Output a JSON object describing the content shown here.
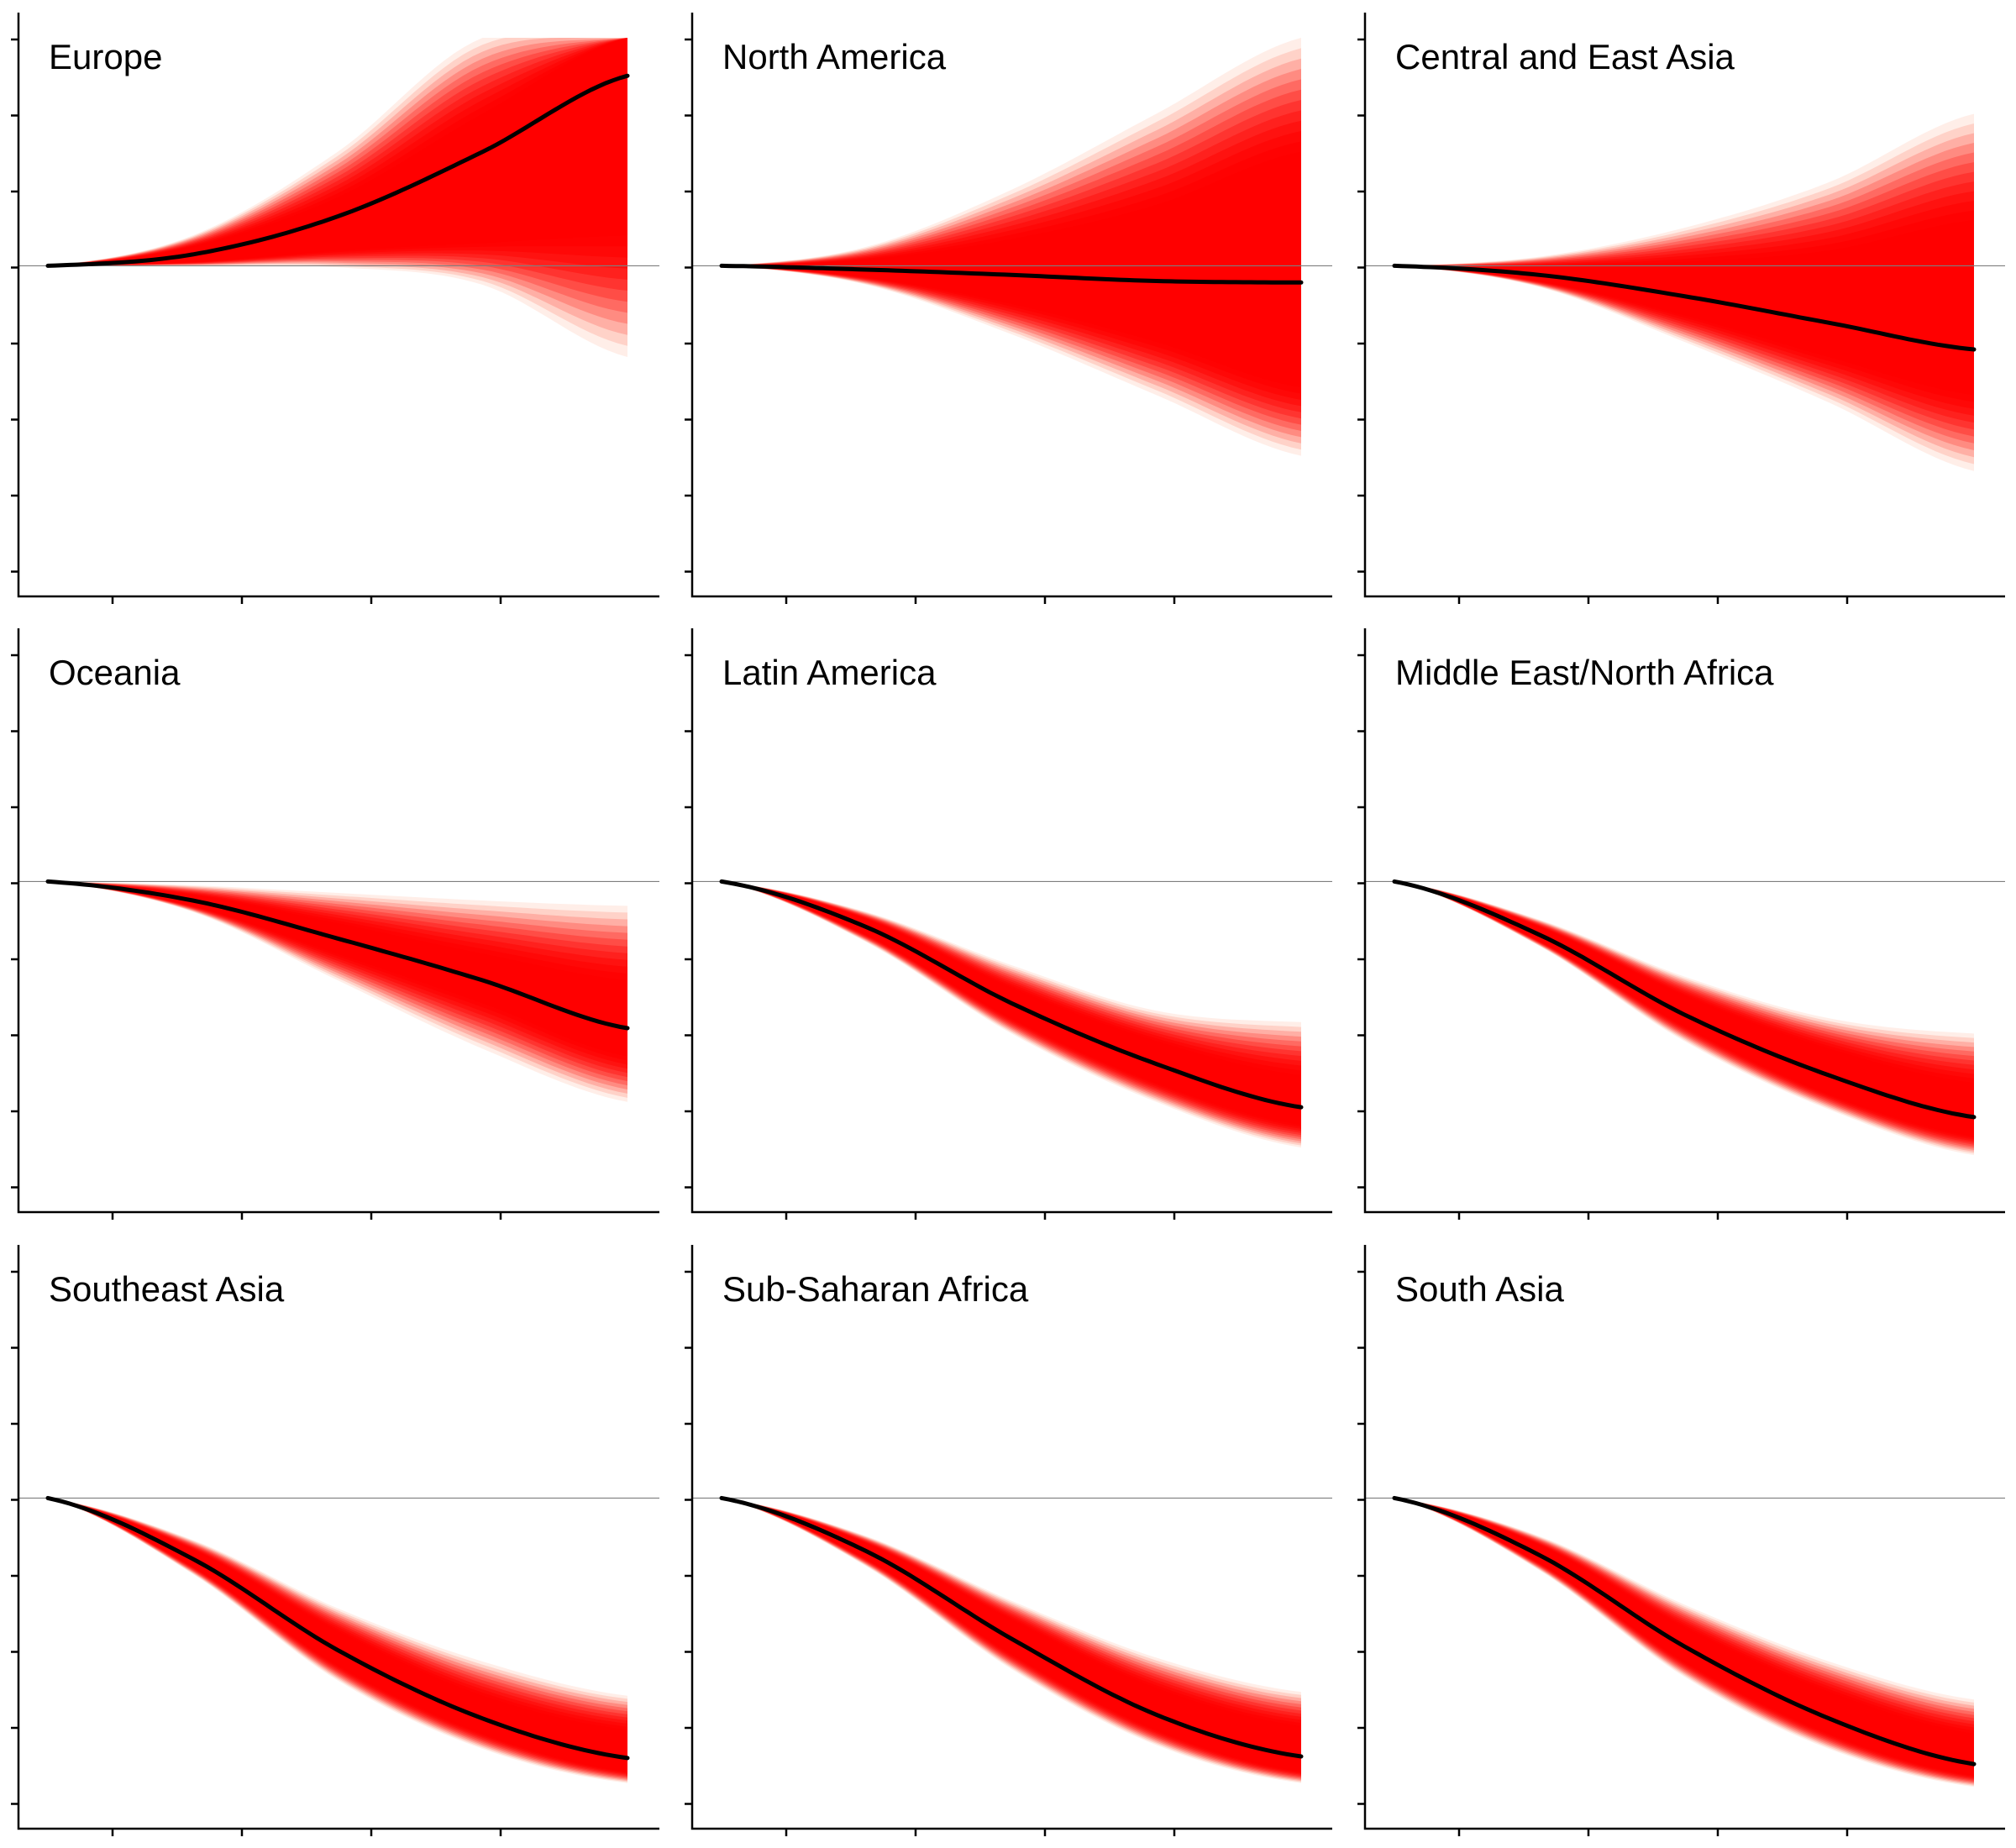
{
  "chart_data": [
    {
      "type": "area",
      "title": "Europe",
      "ylim": [
        -4.35,
        3.0
      ],
      "x": [
        0,
        0.25,
        0.5,
        0.75,
        1.0
      ],
      "median": [
        0,
        0.15,
        0.65,
        1.5,
        2.5
      ],
      "upper": [
        0,
        0.4,
        1.5,
        3.0,
        3.0
      ],
      "lower": [
        0,
        0.0,
        -0.02,
        -0.25,
        -1.2
      ],
      "inner_upper": [
        0,
        0.25,
        0.9,
        2.0,
        3.0
      ],
      "inner_lower": [
        0,
        0.05,
        0.2,
        0.3,
        0.4
      ]
    },
    {
      "type": "area",
      "title": "North America",
      "ylim": [
        -4.35,
        3.0
      ],
      "x": [
        0,
        0.25,
        0.5,
        0.75,
        1.0
      ],
      "median": [
        0,
        -0.05,
        -0.12,
        -0.2,
        -0.22
      ],
      "upper": [
        0,
        0.25,
        1.0,
        2.0,
        3.0
      ],
      "lower": [
        0,
        -0.25,
        -0.9,
        -1.7,
        -2.5
      ],
      "inner_upper": [
        0,
        0.08,
        0.35,
        0.8,
        1.5
      ],
      "inner_lower": [
        0,
        -0.15,
        -0.5,
        -1.0,
        -1.6
      ]
    },
    {
      "type": "area",
      "title": "Central and East Asia",
      "ylim": [
        -4.35,
        3.0
      ],
      "x": [
        0,
        0.25,
        0.5,
        0.75,
        1.0
      ],
      "median": [
        0,
        -0.12,
        -0.4,
        -0.75,
        -1.1
      ],
      "upper": [
        0,
        0.12,
        0.5,
        1.1,
        2.0
      ],
      "lower": [
        0,
        -0.28,
        -1.0,
        -1.8,
        -2.7
      ],
      "inner_upper": [
        0,
        0.0,
        0.05,
        0.2,
        0.6
      ],
      "inner_lower": [
        0,
        -0.2,
        -0.65,
        -1.2,
        -1.7
      ]
    },
    {
      "type": "area",
      "title": "Oceania",
      "ylim": [
        -4.35,
        3.0
      ],
      "x": [
        0,
        0.25,
        0.5,
        0.75,
        1.0
      ],
      "median": [
        0,
        -0.25,
        -0.75,
        -1.3,
        -1.93
      ],
      "upper": [
        0,
        -0.05,
        -0.15,
        -0.25,
        -0.32
      ],
      "lower": [
        0,
        -0.4,
        -1.3,
        -2.2,
        -2.9
      ],
      "inner_upper": [
        0,
        -0.18,
        -0.55,
        -0.95,
        -1.3
      ],
      "inner_lower": [
        0,
        -0.32,
        -0.95,
        -1.6,
        -2.3
      ]
    },
    {
      "type": "area",
      "title": "Latin America",
      "ylim": [
        -4.35,
        3.0
      ],
      "x": [
        0,
        0.25,
        0.5,
        0.75,
        1.0
      ],
      "median": [
        0,
        -0.6,
        -1.6,
        -2.4,
        -2.97
      ],
      "upper": [
        0,
        -0.4,
        -1.1,
        -1.7,
        -1.85
      ],
      "lower": [
        0,
        -0.8,
        -2.0,
        -2.9,
        -3.5
      ],
      "inner_upper": [
        0,
        -0.5,
        -1.4,
        -2.1,
        -2.55
      ],
      "inner_lower": [
        0,
        -0.7,
        -1.8,
        -2.65,
        -3.2
      ]
    },
    {
      "type": "area",
      "title": "Middle East/North Africa",
      "ylim": [
        -4.35,
        3.0
      ],
      "x": [
        0,
        0.25,
        0.5,
        0.75,
        1.0
      ],
      "median": [
        0,
        -0.7,
        -1.75,
        -2.55,
        -3.1
      ],
      "upper": [
        0,
        -0.5,
        -1.25,
        -1.8,
        -2.0
      ],
      "lower": [
        0,
        -0.85,
        -2.1,
        -3.0,
        -3.6
      ],
      "inner_upper": [
        0,
        -0.6,
        -1.5,
        -2.2,
        -2.65
      ],
      "inner_lower": [
        0,
        -0.78,
        -1.9,
        -2.8,
        -3.35
      ]
    },
    {
      "type": "area",
      "title": "Southeast Asia",
      "ylim": [
        -4.35,
        3.0
      ],
      "x": [
        0,
        0.25,
        0.5,
        0.75,
        1.0
      ],
      "median": [
        0,
        -0.8,
        -2.0,
        -2.9,
        -3.42
      ],
      "upper": [
        0,
        -0.55,
        -1.45,
        -2.15,
        -2.6
      ],
      "lower": [
        0,
        -1.0,
        -2.4,
        -3.3,
        -3.75
      ],
      "inner_upper": [
        0,
        -0.68,
        -1.75,
        -2.6,
        -3.05
      ],
      "inner_lower": [
        0,
        -0.9,
        -2.2,
        -3.1,
        -3.6
      ]
    },
    {
      "type": "area",
      "title": "Sub-Saharan Africa",
      "ylim": [
        -4.35,
        3.0
      ],
      "x": [
        0,
        0.25,
        0.5,
        0.75,
        1.0
      ],
      "median": [
        0,
        -0.7,
        -1.85,
        -2.85,
        -3.4
      ],
      "upper": [
        0,
        -0.5,
        -1.35,
        -2.1,
        -2.55
      ],
      "lower": [
        0,
        -0.9,
        -2.25,
        -3.25,
        -3.75
      ],
      "inner_upper": [
        0,
        -0.6,
        -1.6,
        -2.5,
        -3.0
      ],
      "inner_lower": [
        0,
        -0.8,
        -2.05,
        -3.05,
        -3.6
      ]
    },
    {
      "type": "area",
      "title": "South Asia",
      "ylim": [
        -4.35,
        3.0
      ],
      "x": [
        0,
        0.25,
        0.5,
        0.75,
        1.0
      ],
      "median": [
        0,
        -0.75,
        -1.95,
        -2.9,
        -3.5
      ],
      "upper": [
        0,
        -0.5,
        -1.4,
        -2.15,
        -2.65
      ],
      "lower": [
        0,
        -0.95,
        -2.35,
        -3.3,
        -3.8
      ],
      "inner_upper": [
        0,
        -0.62,
        -1.7,
        -2.55,
        -3.1
      ],
      "inner_lower": [
        0,
        -0.85,
        -2.15,
        -3.1,
        -3.65
      ]
    }
  ],
  "colors": {
    "band_outer": "#ffd0c4",
    "band_mid": "#ff7a60",
    "band_inner": "#ff0000",
    "median": "#000000",
    "zero_line": "#7f7f7f"
  }
}
